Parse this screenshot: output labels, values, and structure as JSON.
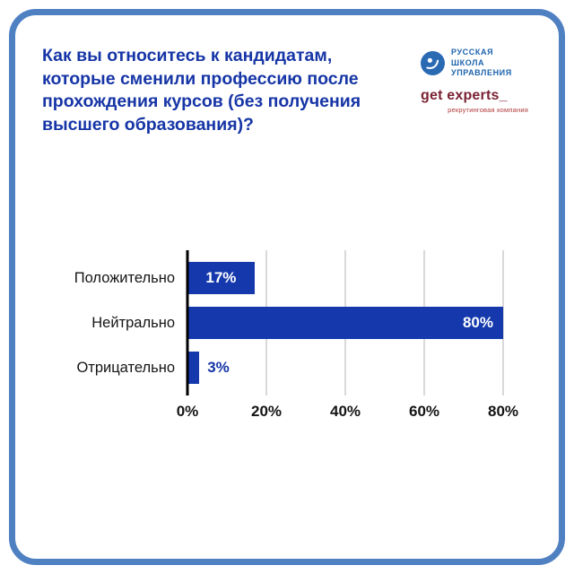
{
  "header": {
    "title": "Как вы относитесь к кандидатам, которые сменили профессию после прохождения курсов (без получения высшего образования)?",
    "logo_rsu": {
      "lines": [
        "РУССКАЯ",
        "ШКОЛА",
        "УПРАВЛЕНИЯ"
      ]
    },
    "logo_getexperts": {
      "wordmark": "get experts_",
      "subtitle": "рекрутинговая компания"
    }
  },
  "colors": {
    "frame_border": "#4e80c2",
    "title_blue": "#1635a6",
    "bar_blue": "#1539ad",
    "rsu_blue": "#2a6ab3",
    "getexperts_maroon": "#7a2233",
    "gridline": "#d9d9d9"
  },
  "chart_data": {
    "type": "bar",
    "orientation": "horizontal",
    "title": "",
    "categories": [
      "Положительно",
      "Нейтрально",
      "Отрицательно"
    ],
    "values": [
      17,
      80,
      3
    ],
    "value_labels": [
      "17%",
      "80%",
      "3%"
    ],
    "x_ticks": [
      "0%",
      "20%",
      "40%",
      "60%",
      "80%"
    ],
    "xlim": [
      0,
      80
    ],
    "grid": true,
    "legend": false,
    "bar_color": "#1539ad"
  }
}
